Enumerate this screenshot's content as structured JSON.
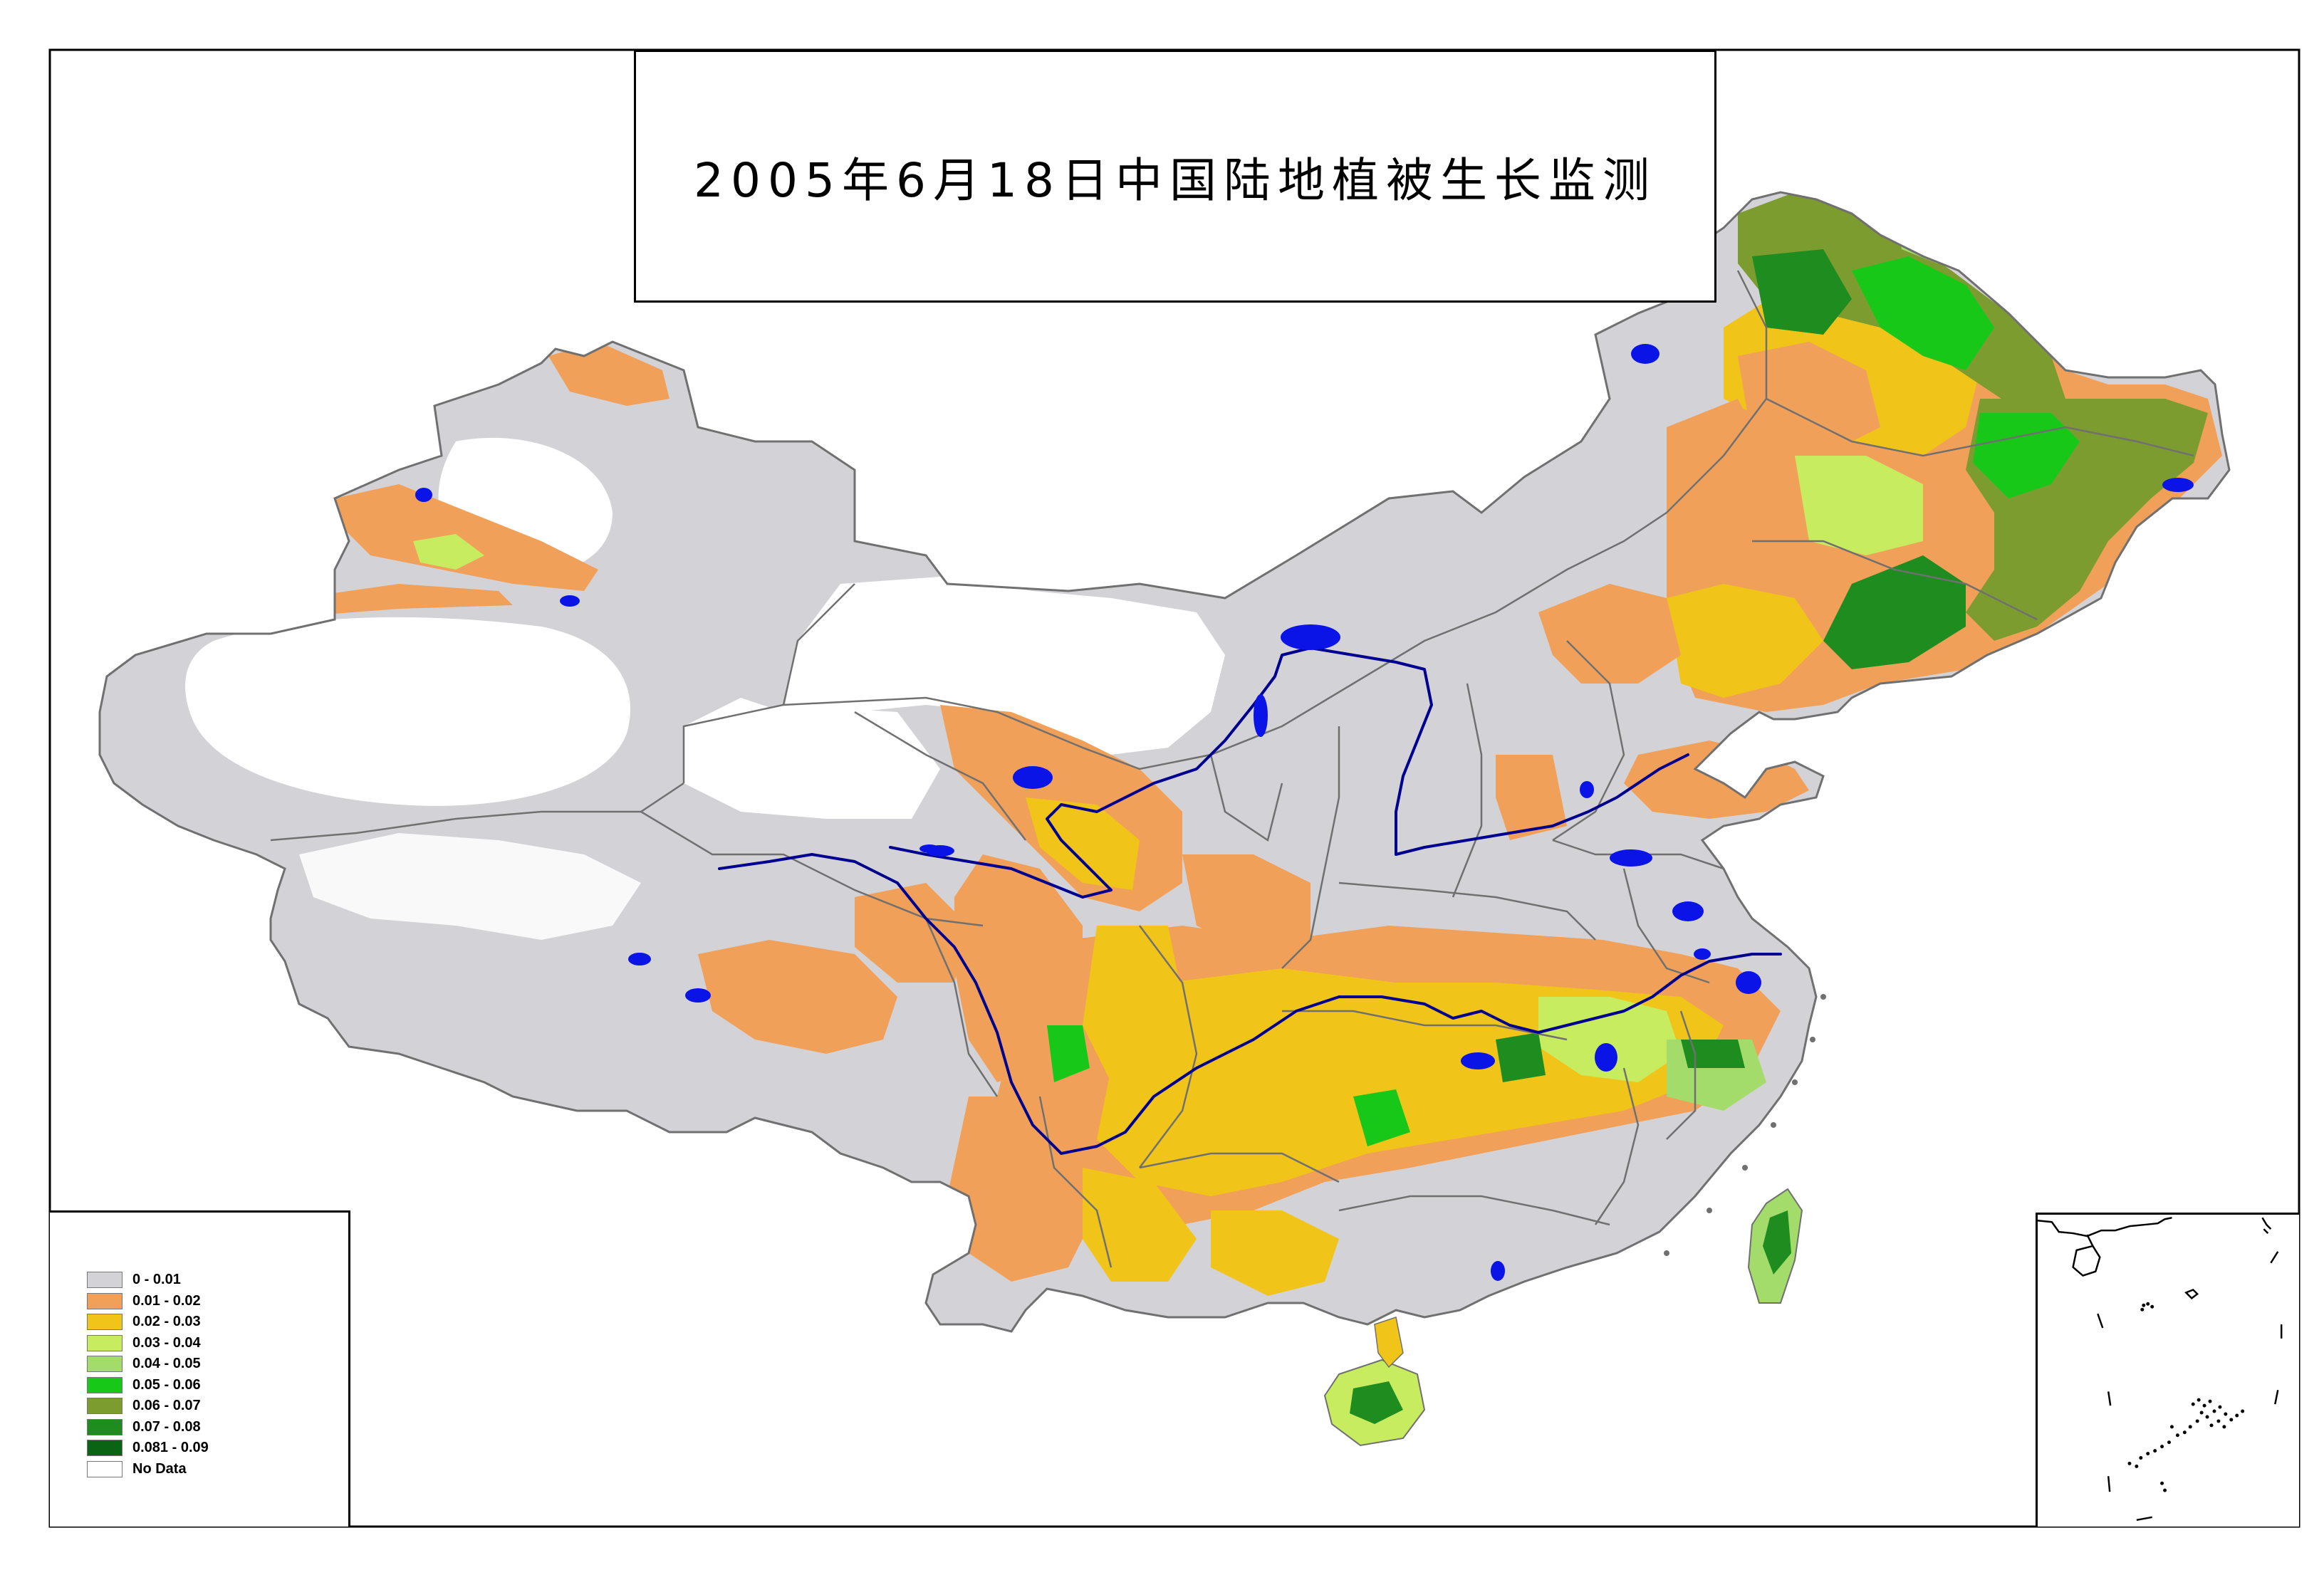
{
  "title": "2005年6月18日中国陆地植被生长监测",
  "legend": {
    "items": [
      {
        "label": "0 - 0.01",
        "color": "#d3d3d7"
      },
      {
        "label": "0.01 - 0.02",
        "color": "#f0a058"
      },
      {
        "label": "0.02 - 0.03",
        "color": "#f0c418"
      },
      {
        "label": "0.03 - 0.04",
        "color": "#c8ec60"
      },
      {
        "label": "0.04 - 0.05",
        "color": "#a4dc6c"
      },
      {
        "label": "0.05 - 0.06",
        "color": "#18c818"
      },
      {
        "label": "0.06 - 0.07",
        "color": "#7c9c30"
      },
      {
        "label": "0.07 - 0.08",
        "color": "#1e8c1e"
      },
      {
        "label": "0.081 - 0.09",
        "color": "#0a6414"
      },
      {
        "label": "No Data",
        "color": "#ffffff"
      }
    ]
  },
  "colors": {
    "water": "#0a14e6",
    "river": "#000090",
    "boundary": "#707070"
  }
}
